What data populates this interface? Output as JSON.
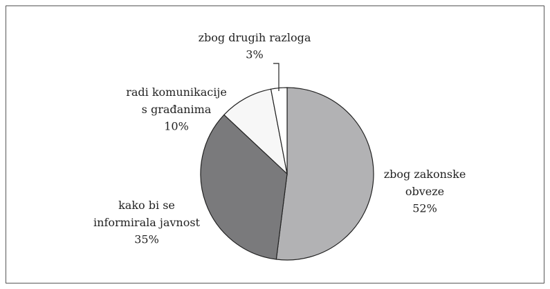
{
  "chart_data": {
    "type": "pie",
    "categories": [
      "zbog zakonske obveze",
      "kako bi se informirala javnost",
      "radi komunikacije s građanima",
      "zbog drugih razloga"
    ],
    "values": [
      52,
      35,
      10,
      3
    ],
    "value_labels": [
      "52%",
      "35%",
      "10%",
      "3%"
    ],
    "colors": [
      "#b2b2b4",
      "#7a7a7c",
      "#f7f7f7",
      "#ffffff"
    ]
  }
}
